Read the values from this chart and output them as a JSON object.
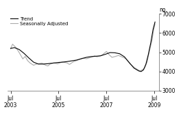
{
  "title": "",
  "ylabel": "no.",
  "ylim": [
    3000,
    7000
  ],
  "yticks": [
    3000,
    4000,
    5000,
    6000,
    7000
  ],
  "xlim_start": 2003.42,
  "xlim_end": 2009.75,
  "xtick_positions": [
    2003.54,
    2005.54,
    2007.54,
    2009.54
  ],
  "xtick_labels": [
    "Jul\n2003",
    "Jul\n2005",
    "Jul\n2007",
    "Jul\n2009"
  ],
  "legend_entries": [
    "Trend",
    "Seasonally Adjusted"
  ],
  "trend_color": "#000000",
  "sa_color": "#aaaaaa",
  "background_color": "#ffffff",
  "trend_data": [
    [
      2003.54,
      5200
    ],
    [
      2003.7,
      5240
    ],
    [
      2003.9,
      5140
    ],
    [
      2004.1,
      4940
    ],
    [
      2004.3,
      4700
    ],
    [
      2004.5,
      4480
    ],
    [
      2004.7,
      4380
    ],
    [
      2004.9,
      4380
    ],
    [
      2005.1,
      4400
    ],
    [
      2005.3,
      4430
    ],
    [
      2005.5,
      4460
    ],
    [
      2005.7,
      4480
    ],
    [
      2005.9,
      4510
    ],
    [
      2006.1,
      4550
    ],
    [
      2006.3,
      4590
    ],
    [
      2006.5,
      4660
    ],
    [
      2006.7,
      4730
    ],
    [
      2006.9,
      4770
    ],
    [
      2007.1,
      4790
    ],
    [
      2007.3,
      4810
    ],
    [
      2007.5,
      4890
    ],
    [
      2007.7,
      4980
    ],
    [
      2007.9,
      4970
    ],
    [
      2008.1,
      4920
    ],
    [
      2008.3,
      4760
    ],
    [
      2008.5,
      4460
    ],
    [
      2008.7,
      4170
    ],
    [
      2008.9,
      4020
    ],
    [
      2009.0,
      3990
    ],
    [
      2009.1,
      4080
    ],
    [
      2009.2,
      4380
    ],
    [
      2009.3,
      4880
    ],
    [
      2009.4,
      5480
    ],
    [
      2009.5,
      6200
    ],
    [
      2009.58,
      6580
    ]
  ],
  "sa_data": [
    [
      2003.54,
      5180
    ],
    [
      2003.62,
      5420
    ],
    [
      2003.75,
      5260
    ],
    [
      2003.85,
      5080
    ],
    [
      2003.95,
      4870
    ],
    [
      2004.05,
      4650
    ],
    [
      2004.15,
      4780
    ],
    [
      2004.25,
      4560
    ],
    [
      2004.35,
      4440
    ],
    [
      2004.5,
      4320
    ],
    [
      2004.65,
      4390
    ],
    [
      2004.85,
      4430
    ],
    [
      2005.0,
      4320
    ],
    [
      2005.1,
      4280
    ],
    [
      2005.2,
      4390
    ],
    [
      2005.35,
      4440
    ],
    [
      2005.5,
      4390
    ],
    [
      2005.7,
      4490
    ],
    [
      2005.9,
      4440
    ],
    [
      2006.0,
      4360
    ],
    [
      2006.15,
      4490
    ],
    [
      2006.35,
      4590
    ],
    [
      2006.55,
      4690
    ],
    [
      2006.72,
      4660
    ],
    [
      2006.92,
      4740
    ],
    [
      2007.05,
      4810
    ],
    [
      2007.15,
      4760
    ],
    [
      2007.35,
      4840
    ],
    [
      2007.55,
      5040
    ],
    [
      2007.65,
      4880
    ],
    [
      2007.78,
      4730
    ],
    [
      2007.95,
      4790
    ],
    [
      2008.05,
      4830
    ],
    [
      2008.15,
      4780
    ],
    [
      2008.35,
      4670
    ],
    [
      2008.55,
      4370
    ],
    [
      2008.75,
      4170
    ],
    [
      2008.95,
      4020
    ],
    [
      2009.05,
      4080
    ],
    [
      2009.15,
      4190
    ],
    [
      2009.25,
      4490
    ],
    [
      2009.35,
      5090
    ],
    [
      2009.45,
      5580
    ],
    [
      2009.52,
      6150
    ],
    [
      2009.58,
      6480
    ]
  ]
}
